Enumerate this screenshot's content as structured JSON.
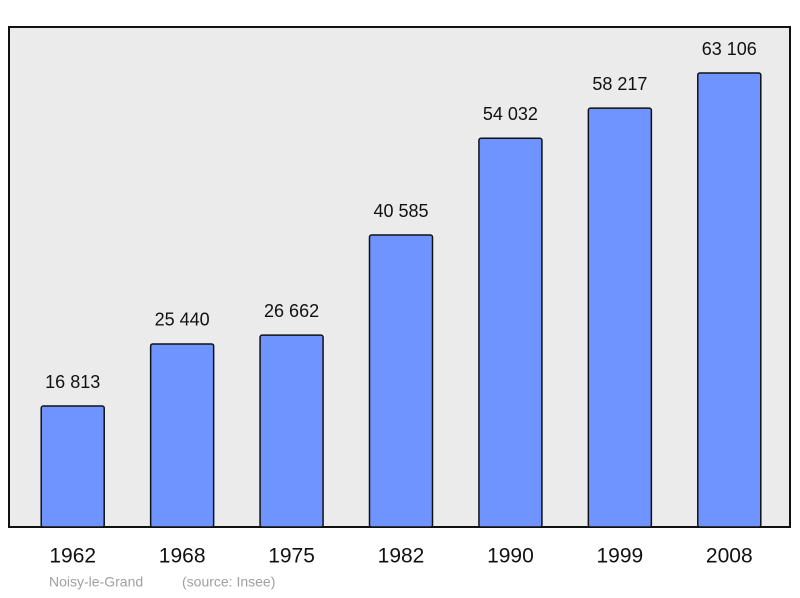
{
  "chart_data": {
    "type": "bar",
    "categories": [
      "1962",
      "1968",
      "1975",
      "1982",
      "1990",
      "1999",
      "2008"
    ],
    "values": [
      16813,
      25440,
      26662,
      40585,
      54032,
      58217,
      63106
    ],
    "value_labels": [
      "16 813",
      "25 440",
      "26 662",
      "40 585",
      "54 032",
      "58 217",
      "63 106"
    ],
    "color": "#7094ff",
    "place": "Noisy-le-Grand",
    "source": "(source: Insee)"
  }
}
